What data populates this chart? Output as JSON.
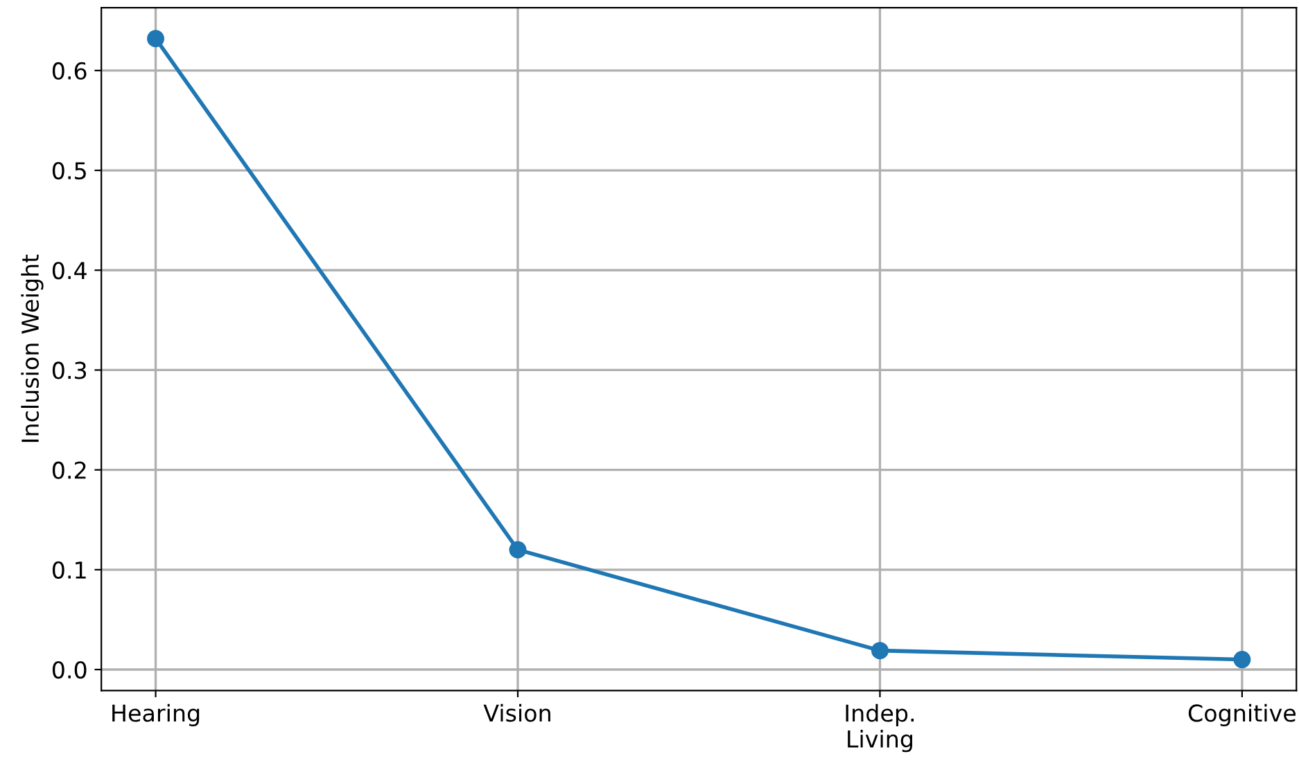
{
  "chart_data": {
    "type": "line",
    "ylabel": "Inclusion Weight",
    "categories": [
      "Hearing",
      "Vision",
      "Indep.\nLiving",
      "Cognitive"
    ],
    "series": [
      {
        "color": "#1f77b4",
        "values": [
          0.632,
          0.12,
          0.019,
          0.01
        ]
      }
    ],
    "ylim": [
      -0.021,
      0.663
    ],
    "yticks": [
      {
        "value": 0,
        "label": "0.0"
      },
      0.1,
      0.2,
      0.3,
      0.4,
      0.5,
      0.6
    ],
    "grid": true,
    "marker": "circle",
    "line_style": "solid"
  }
}
